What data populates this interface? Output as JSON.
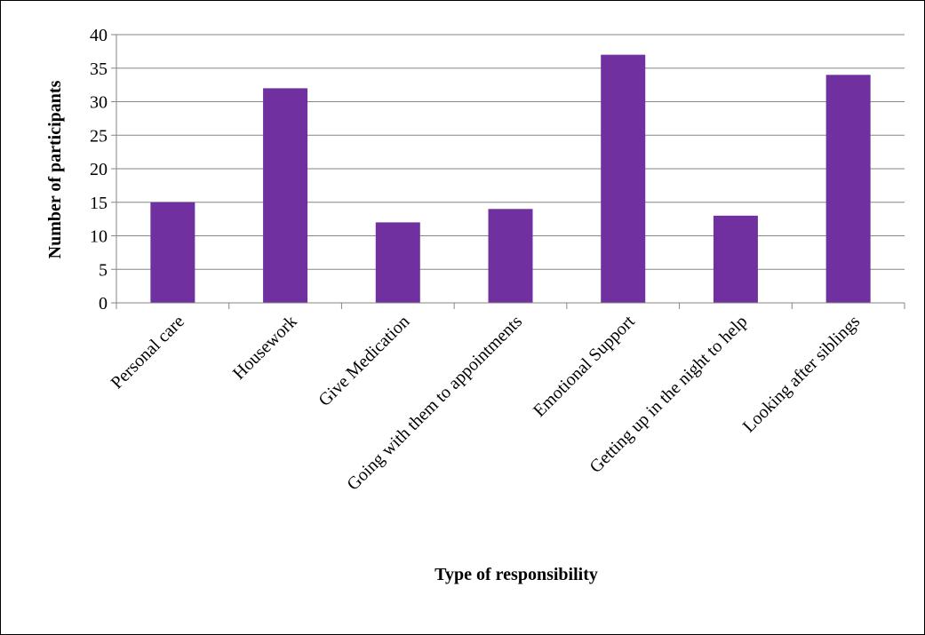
{
  "chart_data": {
    "type": "bar",
    "categories": [
      "Personal care",
      "Housework",
      "Give Medication",
      "Going with them to appointments",
      "Emotional Support",
      "Getting up in the night to help",
      "Looking after siblings"
    ],
    "values": [
      15,
      32,
      12,
      14,
      37,
      13,
      34
    ],
    "xlabel": "Type of responsibility",
    "ylabel": "Number of participants",
    "ylim": [
      0,
      40
    ],
    "yticks": [
      0,
      5,
      10,
      15,
      20,
      25,
      30,
      35,
      40
    ],
    "grid": true,
    "legend": "none",
    "bar_color": "#7030A0",
    "grid_color": "#868686"
  }
}
